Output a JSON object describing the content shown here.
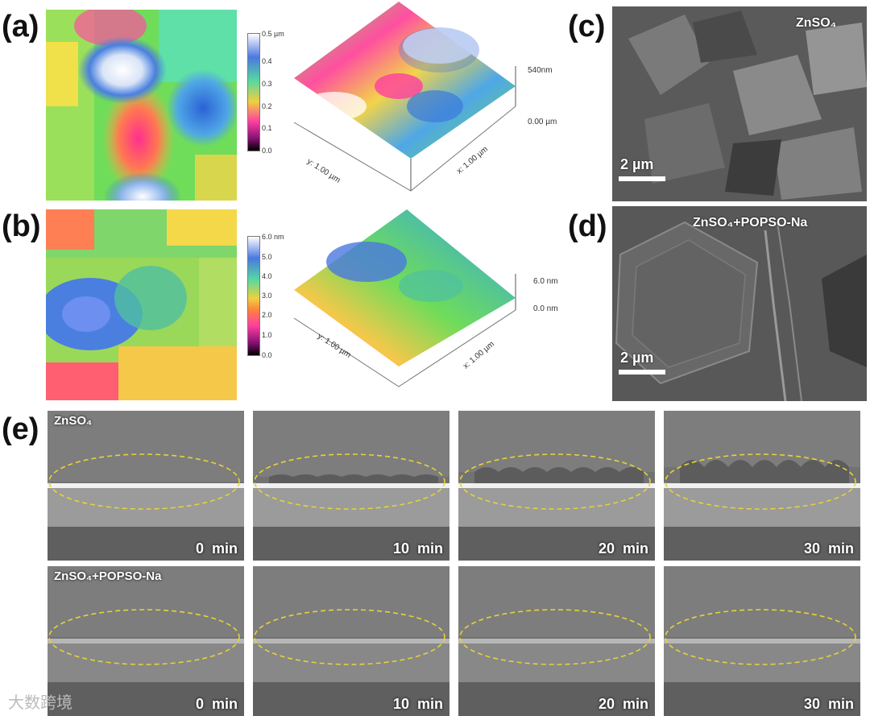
{
  "panels": {
    "a": {
      "letter": "(a)",
      "colorbar_ticks": [
        "0.5 µm",
        "0.4",
        "0.3",
        "0.2",
        "0.1",
        "0.0"
      ],
      "z_top": "540nm",
      "z_bottom": "0.00 µm",
      "y_axis": "y: 1.00 µm",
      "x_axis": "x: 1.00 µm"
    },
    "b": {
      "letter": "(b)",
      "colorbar_ticks": [
        "6.0 nm",
        "5.0",
        "4.0",
        "3.0",
        "2.0",
        "1.0",
        "0.0"
      ],
      "z_top": "6.0 nm",
      "z_bottom": "0.0 nm",
      "y_axis": "y: 1.00 µm",
      "x_axis": "x: 1.00 µm"
    },
    "c": {
      "letter": "(c)",
      "label": "ZnSO₄",
      "scale": "2 µm"
    },
    "d": {
      "letter": "(d)",
      "label": "ZnSO₄+POPSO-Na",
      "scale": "2 µm"
    },
    "e": {
      "letter": "(e)",
      "rows": [
        {
          "label": "ZnSO₄",
          "times": [
            "0  min",
            "10  min",
            "20  min",
            "30  min"
          ]
        },
        {
          "label": "ZnSO₄+POPSO-Na",
          "times": [
            "0  min",
            "10  min",
            "20  min",
            "30  min"
          ]
        }
      ]
    }
  },
  "watermark": "大数跨境",
  "colors": {
    "ellipse": "#e6d23a",
    "background": "#ffffff"
  }
}
